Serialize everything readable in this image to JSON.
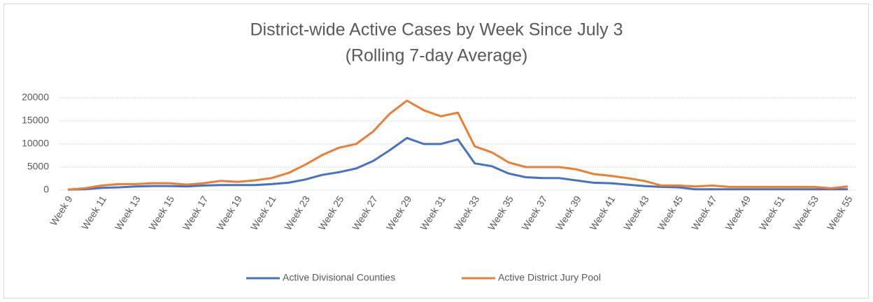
{
  "chart_data": {
    "type": "line",
    "title": "District-wide Active Cases by Week Since July 3",
    "subtitle": "(Rolling 7-day Average)",
    "categories": [
      "Week 9",
      null,
      "Week 11",
      null,
      "Week 13",
      null,
      "Week 15",
      null,
      "Week 17",
      null,
      "Week 19",
      null,
      "Week 21",
      null,
      "Week 23",
      null,
      "Week 25",
      null,
      "Week 27",
      null,
      "Week 29",
      null,
      "Week 31",
      null,
      "Week 33",
      null,
      "Week 35",
      null,
      "Week 37",
      null,
      "Week 39",
      null,
      "Week 41",
      null,
      "Week 43",
      null,
      "Week 45",
      null,
      "Week 47",
      null,
      "Week 49",
      null,
      "Week 51",
      null,
      "Week 53",
      null,
      "Week 55"
    ],
    "series": [
      {
        "name": "Active Divisional Counties",
        "color": "#4472c4",
        "values": [
          100,
          200,
          500,
          600,
          800,
          900,
          900,
          800,
          1000,
          1100,
          1100,
          1100,
          1300,
          1600,
          2300,
          3300,
          3900,
          4700,
          6300,
          8700,
          11300,
          10000,
          10000,
          11000,
          5800,
          5200,
          3600,
          2800,
          2600,
          2600,
          2100,
          1600,
          1500,
          1200,
          900,
          700,
          600,
          200,
          200,
          200,
          200,
          200,
          200,
          200,
          200,
          200,
          200
        ]
      },
      {
        "name": "Active District Jury Pool",
        "color": "#ed7d31",
        "values": [
          100,
          400,
          1000,
          1300,
          1300,
          1500,
          1500,
          1200,
          1500,
          2000,
          1800,
          2100,
          2600,
          3700,
          5500,
          7600,
          9200,
          10000,
          12700,
          16600,
          19400,
          17300,
          16000,
          16800,
          9500,
          8200,
          6000,
          5000,
          5000,
          5000,
          4500,
          3500,
          3100,
          2600,
          2000,
          1000,
          1000,
          800,
          1000,
          700,
          700,
          700,
          700,
          700,
          700,
          400,
          800
        ]
      }
    ],
    "ylim": [
      0,
      20000
    ],
    "yticks": [
      0,
      5000,
      10000,
      15000,
      20000
    ],
    "grid": true,
    "legend": "bottom"
  }
}
